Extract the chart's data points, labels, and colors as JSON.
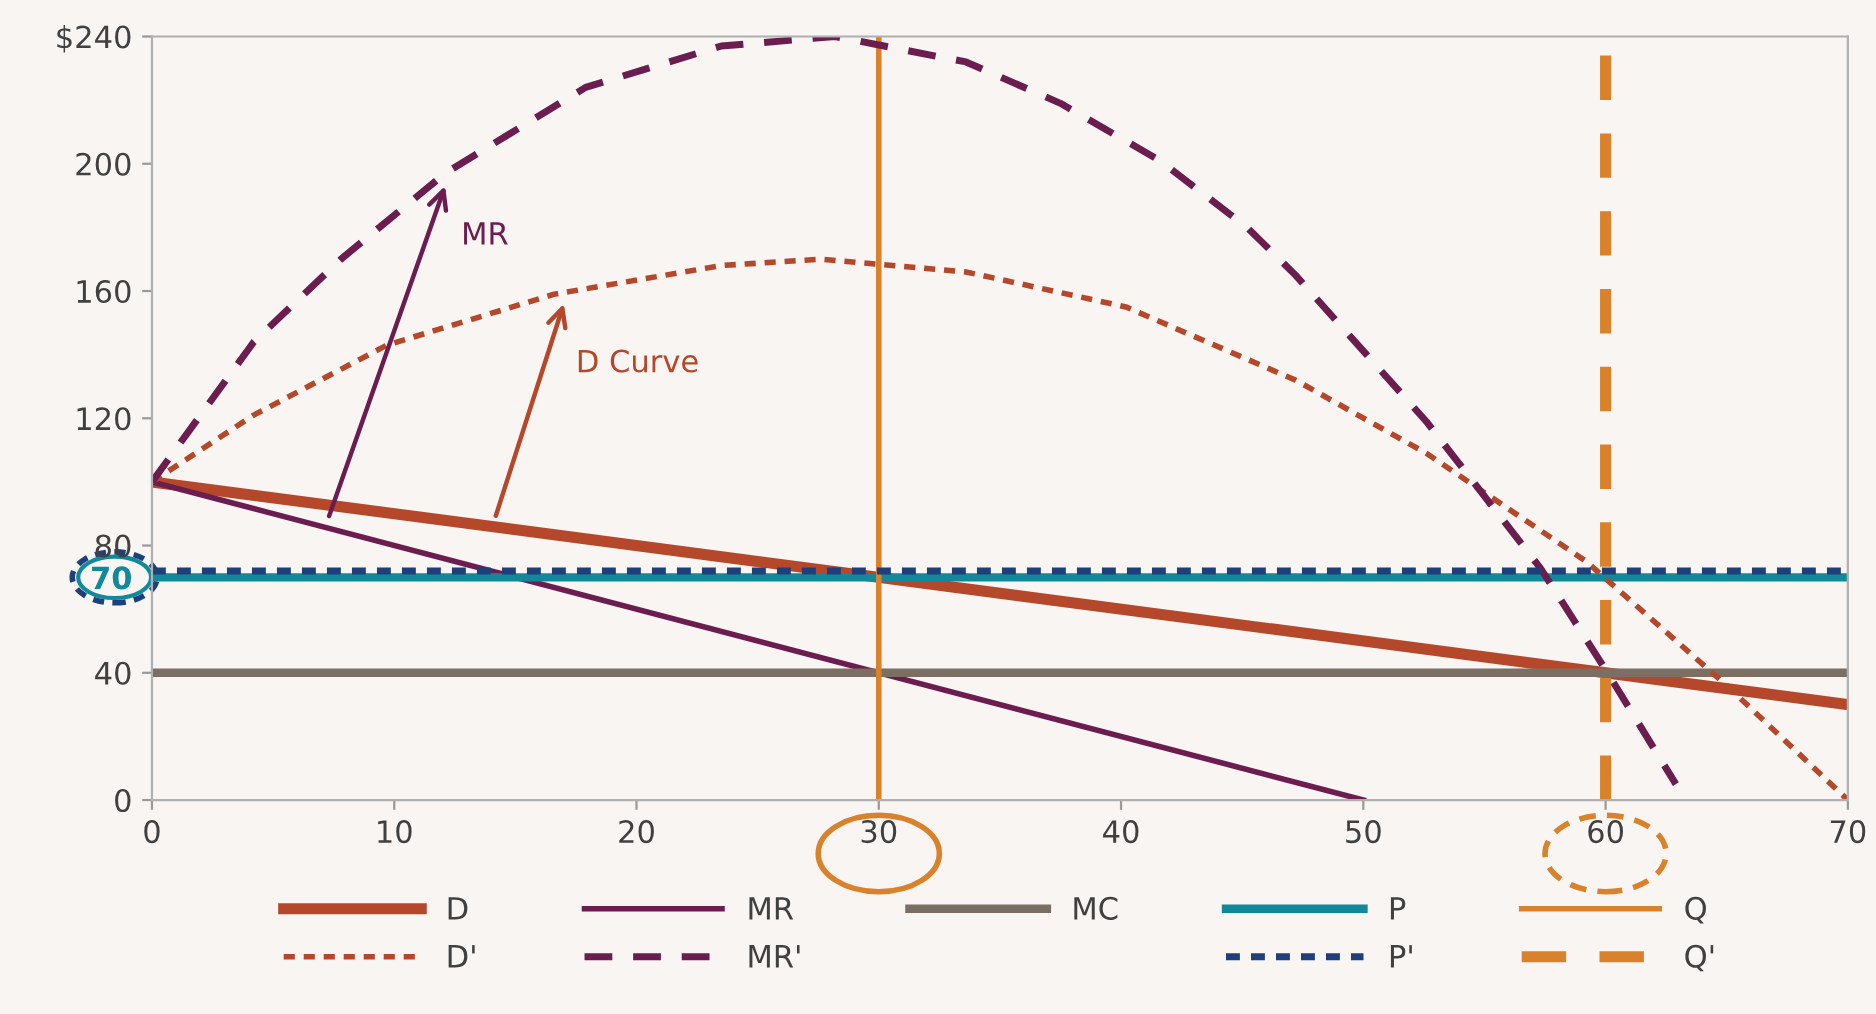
{
  "chart_data": {
    "type": "line",
    "xlim": [
      0,
      70
    ],
    "ylim": [
      0,
      240
    ],
    "xticks": [
      0,
      10,
      20,
      30,
      40,
      50,
      60,
      70
    ],
    "yticks": [
      0,
      40,
      70,
      80,
      120,
      160,
      200,
      {
        "value": 240,
        "label": "$240"
      }
    ],
    "grid": false,
    "legend": "bottom",
    "marker": "none",
    "annotations": [
      {
        "text": "MR",
        "x": 12.1,
        "y": 193
      },
      {
        "text": "D Curve",
        "x": 17,
        "y": 156
      }
    ],
    "series": [
      {
        "name": "D",
        "color": "#b5482a",
        "line_style": "solid",
        "x": [
          0,
          70
        ],
        "values": [
          100,
          30
        ]
      },
      {
        "name": "MR",
        "color": "#6b1d50",
        "line_style": "solid",
        "x": [
          0,
          50
        ],
        "values": [
          100,
          0
        ]
      },
      {
        "name": "MC",
        "color": "#7b6e63",
        "line_style": "solid",
        "x": [
          0,
          70
        ],
        "values": [
          40,
          40
        ]
      },
      {
        "name": "P",
        "color": "#12899a",
        "line_style": "solid",
        "x": [
          0,
          70
        ],
        "values": [
          70,
          70
        ]
      },
      {
        "name": "Q",
        "color": "#d9822b",
        "line_style": "solid",
        "x": [
          30,
          30
        ],
        "values": [
          0,
          240
        ]
      },
      {
        "name": "D'",
        "color": "#b5482a",
        "line_style": "dotted",
        "x": [
          0,
          4.2,
          9.7,
          16.6,
          23.5,
          27.6,
          33.6,
          40.2,
          47.2,
          52.6,
          59.2,
          65,
          70
        ],
        "values": [
          100,
          121,
          143,
          159,
          168,
          170,
          166,
          155,
          132,
          109,
          75,
          36,
          0
        ]
      },
      {
        "name": "MR'",
        "color": "#6b1d50",
        "line_style": "dashed",
        "x": [
          0,
          4.2,
          7.8,
          12.1,
          17.9,
          23.5,
          28.2,
          33.6,
          37.5,
          41.6,
          45.2,
          47.2,
          52.6,
          57.3,
          60,
          62.9
        ],
        "values": [
          100,
          144,
          170,
          197,
          224,
          237,
          240,
          232,
          219,
          201,
          180,
          165,
          119,
          73,
          41,
          5
        ]
      },
      {
        "name": "P'",
        "color": "#1f3f7a",
        "line_style": "dotted",
        "x": [
          0,
          70
        ],
        "values": [
          72,
          72
        ]
      },
      {
        "name": "Q'",
        "color": "#d9822b",
        "line_style": "dashed",
        "x": [
          60,
          60
        ],
        "values": [
          0,
          236
        ]
      }
    ]
  }
}
